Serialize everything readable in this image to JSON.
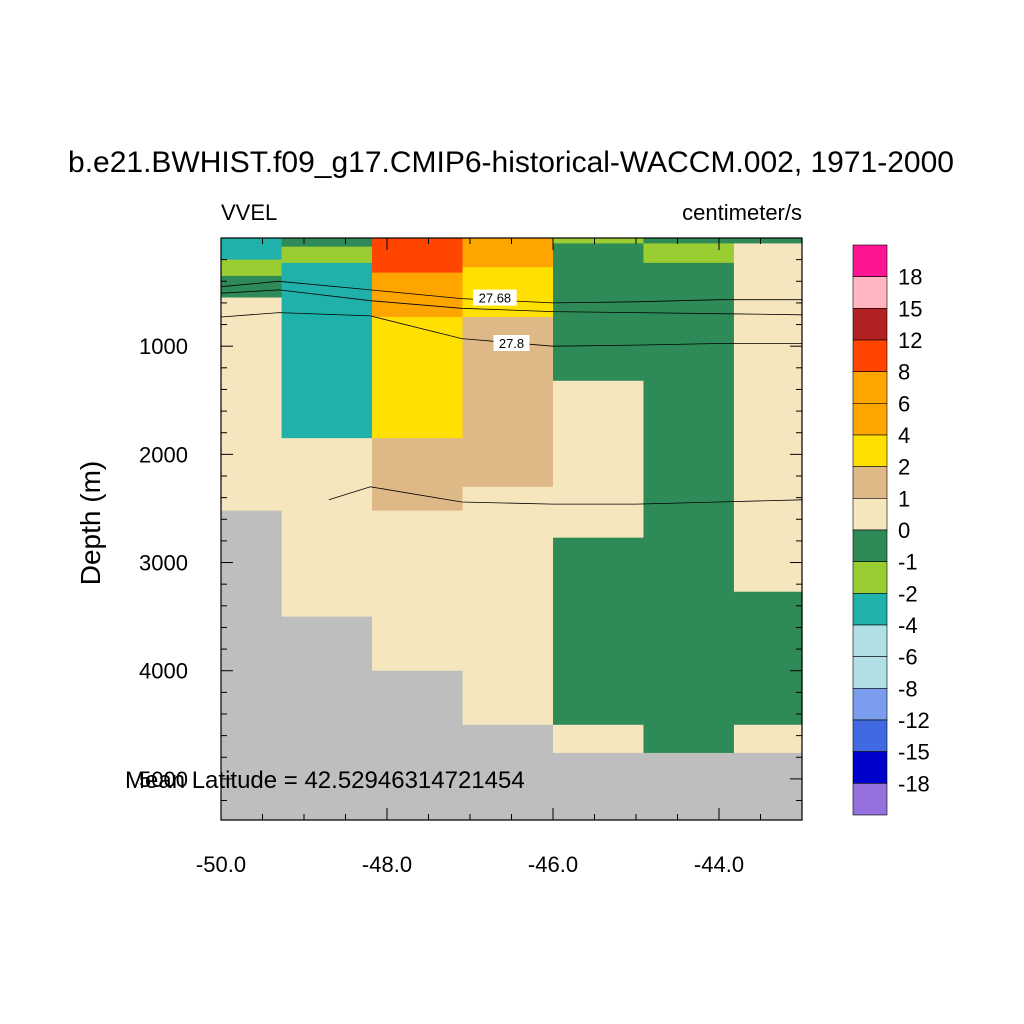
{
  "chart_data": {
    "type": "heatmap",
    "title": "b.e21.BWHIST.f09_g17.CMIP6-historical-WACCM.002, 1971-2000",
    "left_string": "VVEL",
    "right_string": "centimeter/s",
    "xlabel": "",
    "ylabel": "Depth (m)",
    "annotation": "Mean Latitude = 42.52946314721454",
    "x_ticks": [
      "-50.0",
      "-48.0",
      "-46.0",
      "-44.0"
    ],
    "x_tick_values": [
      -50,
      -48,
      -46,
      -44
    ],
    "y_ticks": [
      "1000",
      "2000",
      "3000",
      "4000",
      "5000"
    ],
    "y_tick_values": [
      1000,
      2000,
      3000,
      4000,
      5000
    ],
    "xlim": [
      -50,
      -43
    ],
    "ylim": [
      5380,
      0
    ],
    "colorbar": {
      "labels": [
        "18",
        "15",
        "12",
        "8",
        "6",
        "4",
        "2",
        "1",
        "0",
        "-1",
        "-2",
        "-4",
        "-6",
        "-8",
        "-12",
        "-15",
        "-18"
      ],
      "colors": [
        "#ff1493",
        "#ffb6c1",
        "#b22222",
        "#ff4500",
        "#ffa500",
        "#ffa500",
        "#ffe000",
        "#deb887",
        "#f5e6be",
        "#2e8b57",
        "#9acd32",
        "#20b2aa",
        "#b0e0e6",
        "#b0e0e6",
        "#7b9ded",
        "#4169e1",
        "#0000cd",
        "#9370db"
      ]
    },
    "missing_color": "#bebebe",
    "cells": [
      {
        "x0": -50.0,
        "x1": -49.27,
        "d0": 0,
        "d1": 200,
        "v": -3
      },
      {
        "x0": -50.0,
        "x1": -49.27,
        "d0": 200,
        "d1": 350,
        "v": -1.5
      },
      {
        "x0": -50.0,
        "x1": -49.27,
        "d0": 350,
        "d1": 550,
        "v": -0.5
      },
      {
        "x0": -50.0,
        "x1": -49.27,
        "d0": 550,
        "d1": 2520,
        "v": 0.5
      },
      {
        "x0": -50.0,
        "x1": -49.27,
        "d0": 2520,
        "d1": 5380,
        "v": null
      },
      {
        "x0": -49.27,
        "x1": -48.18,
        "d0": 0,
        "d1": 80,
        "v": -0.5
      },
      {
        "x0": -49.27,
        "x1": -48.18,
        "d0": 80,
        "d1": 230,
        "v": -1.5
      },
      {
        "x0": -49.27,
        "x1": -48.18,
        "d0": 230,
        "d1": 1850,
        "v": -3
      },
      {
        "x0": -49.27,
        "x1": -48.18,
        "d0": 1850,
        "d1": 3500,
        "v": 0.5
      },
      {
        "x0": -49.27,
        "x1": -48.18,
        "d0": 3500,
        "d1": 5380,
        "v": null
      },
      {
        "x0": -48.18,
        "x1": -47.09,
        "d0": 0,
        "d1": 320,
        "v": 10
      },
      {
        "x0": -48.18,
        "x1": -47.09,
        "d0": 320,
        "d1": 730,
        "v": 5
      },
      {
        "x0": -48.18,
        "x1": -47.09,
        "d0": 730,
        "d1": 1850,
        "v": 3
      },
      {
        "x0": -48.18,
        "x1": -47.09,
        "d0": 1850,
        "d1": 2520,
        "v": 1.5
      },
      {
        "x0": -48.18,
        "x1": -47.09,
        "d0": 2520,
        "d1": 4000,
        "v": 0.5
      },
      {
        "x0": -48.18,
        "x1": -47.09,
        "d0": 4000,
        "d1": 5380,
        "v": null
      },
      {
        "x0": -47.09,
        "x1": -46.0,
        "d0": 0,
        "d1": 270,
        "v": 5
      },
      {
        "x0": -47.09,
        "x1": -46.0,
        "d0": 270,
        "d1": 730,
        "v": 3
      },
      {
        "x0": -47.09,
        "x1": -46.0,
        "d0": 730,
        "d1": 2300,
        "v": 1.5
      },
      {
        "x0": -47.09,
        "x1": -46.0,
        "d0": 2300,
        "d1": 4500,
        "v": 0.5
      },
      {
        "x0": -47.09,
        "x1": -46.0,
        "d0": 4500,
        "d1": 5380,
        "v": null
      },
      {
        "x0": -46.0,
        "x1": -44.91,
        "d0": 0,
        "d1": 50,
        "v": -1.5
      },
      {
        "x0": -46.0,
        "x1": -44.91,
        "d0": 50,
        "d1": 1320,
        "v": -0.5
      },
      {
        "x0": -46.0,
        "x1": -44.91,
        "d0": 1320,
        "d1": 2770,
        "v": 0.5
      },
      {
        "x0": -46.0,
        "x1": -44.91,
        "d0": 2770,
        "d1": 4500,
        "v": -0.5
      },
      {
        "x0": -46.0,
        "x1": -44.91,
        "d0": 4500,
        "d1": 4760,
        "v": 0.5
      },
      {
        "x0": -46.0,
        "x1": -44.91,
        "d0": 4760,
        "d1": 5380,
        "v": null
      },
      {
        "x0": -44.91,
        "x1": -43.82,
        "d0": 0,
        "d1": 50,
        "v": -0.5
      },
      {
        "x0": -44.91,
        "x1": -43.82,
        "d0": 50,
        "d1": 230,
        "v": -1.5
      },
      {
        "x0": -44.91,
        "x1": -43.82,
        "d0": 230,
        "d1": 4760,
        "v": -0.5
      },
      {
        "x0": -44.91,
        "x1": -43.82,
        "d0": 4760,
        "d1": 5380,
        "v": null
      },
      {
        "x0": -43.82,
        "x1": -43.0,
        "d0": 0,
        "d1": 50,
        "v": -0.5
      },
      {
        "x0": -43.82,
        "x1": -43.0,
        "d0": 50,
        "d1": 3270,
        "v": 0.5
      },
      {
        "x0": -43.82,
        "x1": -43.0,
        "d0": 3270,
        "d1": 4500,
        "v": -0.5
      },
      {
        "x0": -43.82,
        "x1": -43.0,
        "d0": 4500,
        "d1": 4760,
        "v": 0.5
      },
      {
        "x0": -43.82,
        "x1": -43.0,
        "d0": 4760,
        "d1": 5380,
        "v": null
      }
    ],
    "contours": [
      {
        "label": "27.68",
        "points": [
          [
            -50,
            450
          ],
          [
            -49.3,
            400
          ],
          [
            -48.2,
            480
          ],
          [
            -47.1,
            560
          ],
          [
            -46.0,
            600
          ],
          [
            -45.0,
            590
          ],
          [
            -44.0,
            570
          ],
          [
            -43.0,
            570
          ]
        ]
      },
      {
        "label": "",
        "points": [
          [
            -50,
            510
          ],
          [
            -49.3,
            480
          ],
          [
            -48.2,
            580
          ],
          [
            -47.1,
            650
          ],
          [
            -46.0,
            680
          ],
          [
            -45.0,
            690
          ],
          [
            -44.0,
            700
          ],
          [
            -43.0,
            710
          ]
        ]
      },
      {
        "label": "27.8",
        "points": [
          [
            -50,
            730
          ],
          [
            -49.3,
            690
          ],
          [
            -48.2,
            720
          ],
          [
            -47.1,
            930
          ],
          [
            -46.0,
            1000
          ],
          [
            -45.0,
            990
          ],
          [
            -44.0,
            975
          ],
          [
            -43.0,
            975
          ]
        ]
      },
      {
        "label": "",
        "points": [
          [
            -48.7,
            2420
          ],
          [
            -48.2,
            2300
          ],
          [
            -47.1,
            2440
          ],
          [
            -46.0,
            2460
          ],
          [
            -45.0,
            2460
          ],
          [
            -44.0,
            2440
          ],
          [
            -43.0,
            2420
          ]
        ]
      }
    ],
    "contour_labels": [
      {
        "text": "27.68",
        "x": -46.7,
        "d": 560
      },
      {
        "text": "27.8",
        "x": -46.5,
        "d": 980
      }
    ]
  }
}
